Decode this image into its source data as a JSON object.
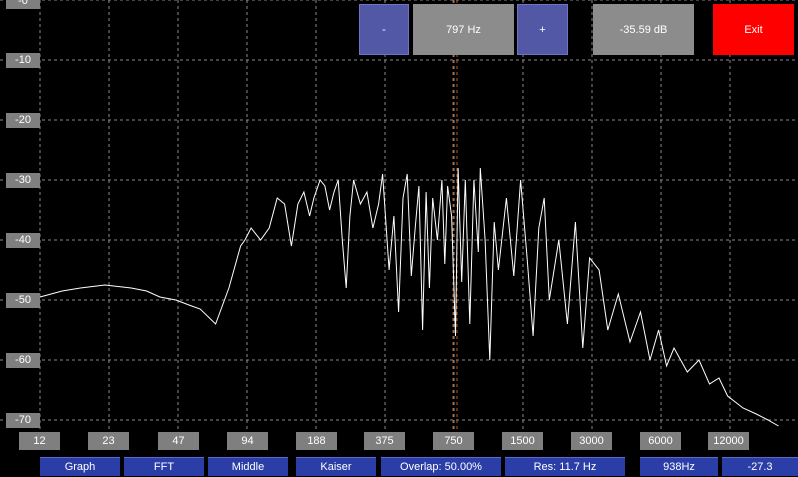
{
  "y_axis": {
    "labels": [
      "-0",
      "-10",
      "-20",
      "-30",
      "-40",
      "-50",
      "-60",
      "-70"
    ]
  },
  "x_axis": {
    "labels": [
      "12",
      "23",
      "47",
      "94",
      "188",
      "375",
      "750",
      "1500",
      "3000",
      "6000",
      "12000"
    ]
  },
  "toolbar": {
    "minus_label": "-",
    "freq_label": "797 Hz",
    "plus_label": "+",
    "level_label": "-35.59 dB",
    "exit_label": "Exit"
  },
  "bottom_bar": {
    "graph_label": "Graph",
    "fft_label": "FFT",
    "middle_label": "Middle",
    "window_label": "Kaiser",
    "overlap_label": "Overlap: 50.00%",
    "res_label": "Res: 11.7 Hz",
    "peak_freq_label": "938Hz",
    "peak_level_label": "-27.3"
  },
  "colors": {
    "accent_blue": "#2b3ea8",
    "exit_red": "#ff0000",
    "trace": "#ffffff"
  },
  "chart_data": {
    "type": "line",
    "xscale": "log",
    "ylim": [
      -70,
      0
    ],
    "grid": true,
    "series": [
      {
        "x": [
          10,
          12,
          15,
          18,
          23,
          30,
          35,
          40,
          47,
          55,
          60,
          70,
          80,
          90,
          94,
          100,
          110,
          120,
          130,
          140,
          150,
          160,
          170,
          180,
          188,
          200,
          210,
          220,
          230,
          240,
          250,
          260,
          270,
          280,
          300,
          320,
          340,
          360,
          375,
          400,
          420,
          440,
          460,
          480,
          500,
          520,
          540,
          560,
          580,
          600,
          620,
          650,
          680,
          700,
          720,
          750,
          780,
          800,
          830,
          860,
          900,
          938,
          980,
          1000,
          1050,
          1100,
          1150,
          1200,
          1300,
          1400,
          1500,
          1600,
          1700,
          1800,
          1900,
          2000,
          2200,
          2400,
          2600,
          2800,
          3000,
          3300,
          3600,
          4000,
          4500,
          5000,
          5500,
          6000,
          6500,
          7000,
          8000,
          9000,
          10000,
          11000,
          12000,
          14000,
          16000,
          18000,
          20000
        ],
        "y": [
          -50,
          -49.5,
          -48.5,
          -48,
          -47.5,
          -48,
          -48.5,
          -49.5,
          -50,
          -51,
          -51.5,
          -54,
          -48,
          -41,
          -40,
          -38,
          -40,
          -38,
          -33,
          -34,
          -41,
          -34,
          -32,
          -36,
          -33,
          -30,
          -31,
          -35,
          -32,
          -30,
          -40,
          -48,
          -36,
          -30,
          -34,
          -32,
          -38,
          -34,
          -29,
          -45,
          -36,
          -52,
          -33,
          -29,
          -46,
          -38,
          -31,
          -55,
          -32,
          -48,
          -33,
          -40,
          -30,
          -44,
          -31,
          -36,
          -56,
          -28,
          -47,
          -30,
          -54,
          -30,
          -42,
          -28,
          -40,
          -60,
          -37,
          -45,
          -33,
          -46,
          -30,
          -43,
          -56,
          -38,
          -33,
          -50,
          -40,
          -54,
          -37,
          -58,
          -43,
          -45,
          -55,
          -49,
          -57,
          -52,
          -60,
          -55,
          -61,
          -58,
          -62,
          -60,
          -64,
          -63,
          -66,
          -68,
          -69,
          -70,
          -71
        ]
      }
    ]
  }
}
